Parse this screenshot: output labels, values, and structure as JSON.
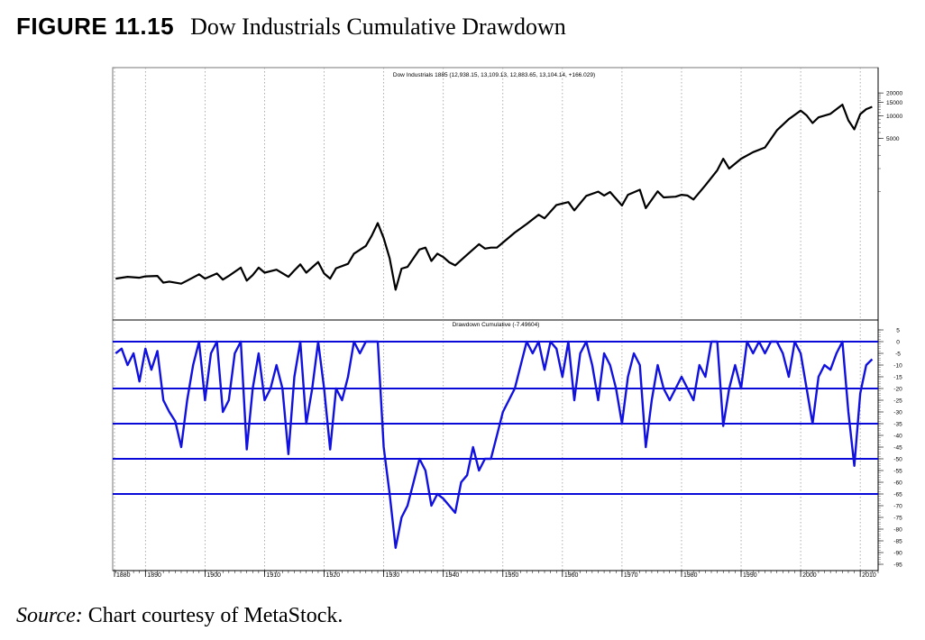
{
  "figure": {
    "label": "FIGURE 11.15",
    "title": "Dow Industrials Cumulative Drawdown"
  },
  "source": {
    "prefix": "Source:",
    "text": " Chart courtesy of MetaStock."
  },
  "chart_data": [
    {
      "type": "line",
      "title": "Dow Industrials 1885 (12,938.15, 13,109.13, 12,883.65, 13,104.14, +166.029)",
      "scale": "log",
      "y_ticks": [
        20000,
        15000,
        10000,
        5000
      ],
      "ylim": [
        30,
        25000
      ],
      "line_color": "#000000",
      "points": [
        [
          1885,
          70
        ],
        [
          1887,
          74
        ],
        [
          1889,
          72
        ],
        [
          1890,
          75
        ],
        [
          1892,
          76
        ],
        [
          1893,
          62
        ],
        [
          1894,
          64
        ],
        [
          1896,
          60
        ],
        [
          1897,
          66
        ],
        [
          1899,
          80
        ],
        [
          1900,
          70
        ],
        [
          1902,
          82
        ],
        [
          1903,
          68
        ],
        [
          1904,
          76
        ],
        [
          1906,
          98
        ],
        [
          1907,
          66
        ],
        [
          1908,
          78
        ],
        [
          1909,
          98
        ],
        [
          1910,
          84
        ],
        [
          1912,
          92
        ],
        [
          1914,
          74
        ],
        [
          1915,
          90
        ],
        [
          1916,
          108
        ],
        [
          1917,
          84
        ],
        [
          1919,
          116
        ],
        [
          1920,
          82
        ],
        [
          1921,
          70
        ],
        [
          1922,
          96
        ],
        [
          1924,
          110
        ],
        [
          1925,
          150
        ],
        [
          1927,
          190
        ],
        [
          1928,
          260
        ],
        [
          1929,
          380
        ],
        [
          1930,
          240
        ],
        [
          1931,
          130
        ],
        [
          1932,
          50
        ],
        [
          1933,
          95
        ],
        [
          1934,
          100
        ],
        [
          1936,
          170
        ],
        [
          1937,
          180
        ],
        [
          1938,
          120
        ],
        [
          1939,
          150
        ],
        [
          1940,
          135
        ],
        [
          1941,
          115
        ],
        [
          1942,
          105
        ],
        [
          1944,
          145
        ],
        [
          1946,
          200
        ],
        [
          1947,
          175
        ],
        [
          1948,
          180
        ],
        [
          1949,
          180
        ],
        [
          1950,
          210
        ],
        [
          1952,
          285
        ],
        [
          1954,
          370
        ],
        [
          1956,
          490
        ],
        [
          1957,
          440
        ],
        [
          1959,
          660
        ],
        [
          1961,
          720
        ],
        [
          1962,
          560
        ],
        [
          1964,
          870
        ],
        [
          1966,
          990
        ],
        [
          1967,
          880
        ],
        [
          1968,
          980
        ],
        [
          1970,
          650
        ],
        [
          1971,
          900
        ],
        [
          1973,
          1050
        ],
        [
          1974,
          600
        ],
        [
          1976,
          1000
        ],
        [
          1977,
          830
        ],
        [
          1979,
          850
        ],
        [
          1980,
          900
        ],
        [
          1981,
          880
        ],
        [
          1982,
          780
        ],
        [
          1984,
          1200
        ],
        [
          1986,
          1900
        ],
        [
          1987,
          2700
        ],
        [
          1988,
          2000
        ],
        [
          1990,
          2700
        ],
        [
          1992,
          3300
        ],
        [
          1994,
          3800
        ],
        [
          1996,
          6400
        ],
        [
          1998,
          9000
        ],
        [
          2000,
          11700
        ],
        [
          2001,
          10100
        ],
        [
          2002,
          8000
        ],
        [
          2003,
          9500
        ],
        [
          2005,
          10600
        ],
        [
          2007,
          14000
        ],
        [
          2008,
          8700
        ],
        [
          2009,
          6600
        ],
        [
          2010,
          10500
        ],
        [
          2011,
          12200
        ],
        [
          2012,
          13104
        ]
      ]
    },
    {
      "type": "line",
      "title": "Drawdown Cumulative (-7.49604)",
      "ylim": [
        -95,
        5
      ],
      "y_ticks": [
        5,
        0,
        -5,
        -10,
        -15,
        -20,
        -25,
        -30,
        -35,
        -40,
        -45,
        -50,
        -55,
        -60,
        -65,
        -70,
        -75,
        -80,
        -85,
        -90,
        -95
      ],
      "reference_lines": [
        0,
        -20,
        -35,
        -50,
        -65
      ],
      "line_color": "#1010e0",
      "points": [
        [
          1885,
          -5
        ],
        [
          1886,
          -3
        ],
        [
          1887,
          -10
        ],
        [
          1888,
          -5
        ],
        [
          1889,
          -17
        ],
        [
          1890,
          -3
        ],
        [
          1891,
          -12
        ],
        [
          1892,
          -4
        ],
        [
          1893,
          -25
        ],
        [
          1894,
          -30
        ],
        [
          1895,
          -34
        ],
        [
          1896,
          -45
        ],
        [
          1897,
          -25
        ],
        [
          1898,
          -10
        ],
        [
          1899,
          0
        ],
        [
          1900,
          -25
        ],
        [
          1901,
          -5
        ],
        [
          1902,
          0
        ],
        [
          1903,
          -30
        ],
        [
          1904,
          -25
        ],
        [
          1905,
          -5
        ],
        [
          1906,
          0
        ],
        [
          1907,
          -46
        ],
        [
          1908,
          -20
        ],
        [
          1909,
          -5
        ],
        [
          1910,
          -25
        ],
        [
          1911,
          -20
        ],
        [
          1912,
          -10
        ],
        [
          1913,
          -20
        ],
        [
          1914,
          -48
        ],
        [
          1915,
          -15
        ],
        [
          1916,
          0
        ],
        [
          1917,
          -35
        ],
        [
          1918,
          -20
        ],
        [
          1919,
          0
        ],
        [
          1920,
          -20
        ],
        [
          1921,
          -46
        ],
        [
          1922,
          -20
        ],
        [
          1923,
          -25
        ],
        [
          1924,
          -15
        ],
        [
          1925,
          0
        ],
        [
          1926,
          -5
        ],
        [
          1927,
          0
        ],
        [
          1928,
          0
        ],
        [
          1929,
          0
        ],
        [
          1930,
          -45
        ],
        [
          1931,
          -65
        ],
        [
          1932,
          -88
        ],
        [
          1933,
          -75
        ],
        [
          1934,
          -70
        ],
        [
          1935,
          -60
        ],
        [
          1936,
          -50
        ],
        [
          1937,
          -55
        ],
        [
          1938,
          -70
        ],
        [
          1939,
          -65
        ],
        [
          1940,
          -67
        ],
        [
          1941,
          -70
        ],
        [
          1942,
          -73
        ],
        [
          1943,
          -60
        ],
        [
          1944,
          -57
        ],
        [
          1945,
          -45
        ],
        [
          1946,
          -55
        ],
        [
          1947,
          -50
        ],
        [
          1948,
          -50
        ],
        [
          1949,
          -40
        ],
        [
          1950,
          -30
        ],
        [
          1951,
          -25
        ],
        [
          1952,
          -20
        ],
        [
          1953,
          -10
        ],
        [
          1954,
          0
        ],
        [
          1955,
          -5
        ],
        [
          1956,
          0
        ],
        [
          1957,
          -12
        ],
        [
          1958,
          0
        ],
        [
          1959,
          -3
        ],
        [
          1960,
          -15
        ],
        [
          1961,
          0
        ],
        [
          1962,
          -25
        ],
        [
          1963,
          -5
        ],
        [
          1964,
          0
        ],
        [
          1965,
          -10
        ],
        [
          1966,
          -25
        ],
        [
          1967,
          -5
        ],
        [
          1968,
          -10
        ],
        [
          1969,
          -20
        ],
        [
          1970,
          -35
        ],
        [
          1971,
          -15
        ],
        [
          1972,
          -5
        ],
        [
          1973,
          -10
        ],
        [
          1974,
          -45
        ],
        [
          1975,
          -25
        ],
        [
          1976,
          -10
        ],
        [
          1977,
          -20
        ],
        [
          1978,
          -25
        ],
        [
          1979,
          -20
        ],
        [
          1980,
          -15
        ],
        [
          1981,
          -20
        ],
        [
          1982,
          -25
        ],
        [
          1983,
          -10
        ],
        [
          1984,
          -15
        ],
        [
          1985,
          0
        ],
        [
          1986,
          0
        ],
        [
          1987,
          -36
        ],
        [
          1988,
          -20
        ],
        [
          1989,
          -10
        ],
        [
          1990,
          -20
        ],
        [
          1991,
          0
        ],
        [
          1992,
          -5
        ],
        [
          1993,
          0
        ],
        [
          1994,
          -5
        ],
        [
          1995,
          0
        ],
        [
          1996,
          0
        ],
        [
          1997,
          -5
        ],
        [
          1998,
          -15
        ],
        [
          1999,
          0
        ],
        [
          2000,
          -5
        ],
        [
          2001,
          -20
        ],
        [
          2002,
          -35
        ],
        [
          2003,
          -15
        ],
        [
          2004,
          -10
        ],
        [
          2005,
          -12
        ],
        [
          2006,
          -5
        ],
        [
          2007,
          0
        ],
        [
          2008,
          -30
        ],
        [
          2009,
          -53
        ],
        [
          2010,
          -22
        ],
        [
          2011,
          -10
        ],
        [
          2012,
          -7.5
        ]
      ]
    }
  ],
  "x_axis": {
    "xlim": [
      1884.5,
      2013
    ],
    "minor_tick_step": 1,
    "tick_labels": [
      {
        "year": 1880,
        "label": "1880"
      },
      {
        "year": 1890,
        "label": "1890"
      },
      {
        "year": 1900,
        "label": "1900"
      },
      {
        "year": 1910,
        "label": "1910"
      },
      {
        "year": 1920,
        "label": "1920"
      },
      {
        "year": 1930,
        "label": "1930"
      },
      {
        "year": 1940,
        "label": "1940"
      },
      {
        "year": 1950,
        "label": "1950"
      },
      {
        "year": 1960,
        "label": "1960"
      },
      {
        "year": 1970,
        "label": "1970"
      },
      {
        "year": 1980,
        "label": "1980"
      },
      {
        "year": 1990,
        "label": "1990"
      },
      {
        "year": 2000,
        "label": "2000"
      },
      {
        "year": 2010,
        "label": "2010"
      }
    ]
  }
}
